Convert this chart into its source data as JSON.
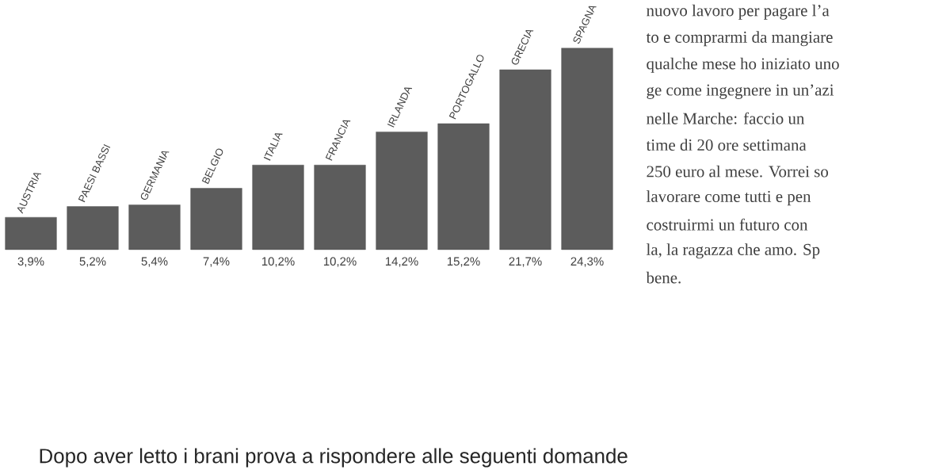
{
  "chart_data": {
    "type": "bar",
    "categories": [
      "AUSTRIA",
      "PAESI BASSI",
      "GERMANIA",
      "BELGIO",
      "ITALIA",
      "FRANCIA",
      "IRLANDA",
      "PORTOGALLO",
      "GRECIA",
      "SPAGNA"
    ],
    "values": [
      3.9,
      5.2,
      5.4,
      7.4,
      10.2,
      10.2,
      14.2,
      15.2,
      21.7,
      24.3
    ],
    "value_labels": [
      "3,9%",
      "5,2%",
      "5,4%",
      "7,4%",
      "10,2%",
      "10,2%",
      "14,2%",
      "15,2%",
      "21,7%",
      "24,3%"
    ],
    "color": "#5c5c5c",
    "annotations": [
      "nuovo lavoro per pagare l’a",
      "to e comprarmi da mangiare",
      "qualche mese ho iniziato uno",
      "ge come ingegnere in un’azi",
      "nelle Marche: faccio un",
      "time di 20 ore settimana",
      "250 euro al mese. Vorrei so",
      "lavorare come tutti e pen",
      "costruirmi un futuro con",
      "la, la ragazza che amo. Sp",
      "bene.",
      "Dopo aver letto i brani prova a rispondere alle seguenti domande"
    ]
  }
}
